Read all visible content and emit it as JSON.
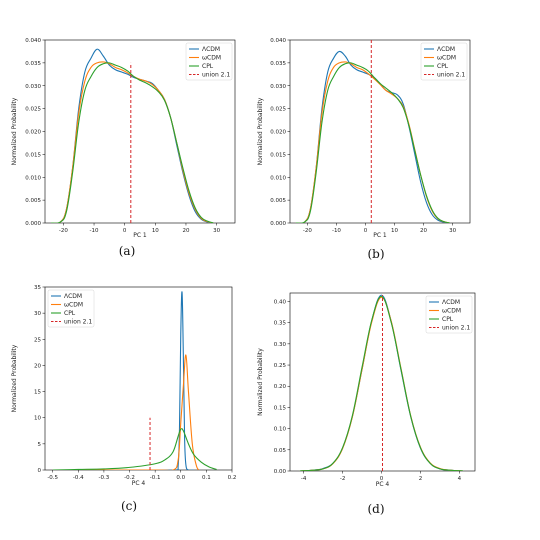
{
  "colors": {
    "lcdm": "#1f77b4",
    "wcdm": "#ff7f0e",
    "cpl": "#2ca02c",
    "union": "#d62728"
  },
  "chart_data": [
    {
      "type": "line",
      "panel": "(a)",
      "xlabel": "PC 1",
      "ylabel": "Normalized Probability",
      "xlim": [
        -26,
        36
      ],
      "ylim": [
        0,
        0.04
      ],
      "xticks": [
        "-20",
        "-10",
        "0",
        "10",
        "20",
        "30"
      ],
      "yticks": [
        "0.000",
        "0.005",
        "0.010",
        "0.015",
        "0.020",
        "0.025",
        "0.030",
        "0.035",
        "0.040"
      ],
      "legend_position": "top-right",
      "vline": {
        "name": "union 2.1",
        "x": 2.0,
        "ymax": 0.035
      },
      "series": [
        {
          "name": "ΛCDM",
          "color_key": "lcdm",
          "x": [
            -24,
            -21,
            -19,
            -17,
            -15,
            -13,
            -11,
            -9,
            -7,
            -5,
            -3,
            -1,
            1,
            3,
            5,
            7,
            9,
            11,
            13,
            15,
            17,
            19,
            21,
            23,
            25,
            27,
            29
          ],
          "y": [
            0.0,
            0.0002,
            0.003,
            0.012,
            0.025,
            0.033,
            0.036,
            0.038,
            0.0365,
            0.0345,
            0.0335,
            0.033,
            0.0325,
            0.0318,
            0.0314,
            0.031,
            0.0305,
            0.029,
            0.027,
            0.023,
            0.017,
            0.011,
            0.006,
            0.0025,
            0.0008,
            0.0002,
            0.0
          ]
        },
        {
          "name": "ωCDM",
          "color_key": "wcdm",
          "x": [
            -24,
            -21,
            -19,
            -17,
            -15,
            -13,
            -11,
            -9,
            -7,
            -5,
            -3,
            -1,
            1,
            3,
            5,
            7,
            9,
            11,
            13,
            15,
            17,
            19,
            21,
            23,
            25,
            27,
            29
          ],
          "y": [
            0.0,
            0.0002,
            0.003,
            0.012,
            0.024,
            0.031,
            0.034,
            0.035,
            0.0352,
            0.0348,
            0.034,
            0.0335,
            0.0328,
            0.032,
            0.0314,
            0.031,
            0.0303,
            0.029,
            0.027,
            0.023,
            0.0175,
            0.0115,
            0.0065,
            0.003,
            0.001,
            0.0003,
            0.0
          ]
        },
        {
          "name": "CPL",
          "color_key": "cpl",
          "x": [
            -24,
            -21,
            -19,
            -17,
            -15,
            -13,
            -11,
            -9,
            -7,
            -5,
            -3,
            -1,
            1,
            3,
            5,
            7,
            9,
            11,
            13,
            15,
            17,
            19,
            21,
            23,
            25,
            27,
            29
          ],
          "y": [
            0.0,
            0.0002,
            0.0025,
            0.011,
            0.022,
            0.029,
            0.032,
            0.034,
            0.0348,
            0.035,
            0.0345,
            0.034,
            0.0332,
            0.032,
            0.0312,
            0.0306,
            0.0298,
            0.0287,
            0.0268,
            0.023,
            0.0175,
            0.012,
            0.007,
            0.0033,
            0.0012,
            0.0004,
            0.0
          ]
        }
      ]
    },
    {
      "type": "line",
      "panel": "(b)",
      "xlabel": "PC 1",
      "ylabel": "Normalized Probability",
      "xlim": [
        -26,
        36
      ],
      "ylim": [
        0,
        0.04
      ],
      "xticks": [
        "-20",
        "-10",
        "0",
        "10",
        "20",
        "30"
      ],
      "yticks": [
        "0.000",
        "0.005",
        "0.010",
        "0.015",
        "0.020",
        "0.025",
        "0.030",
        "0.035",
        "0.040"
      ],
      "legend_position": "top-right",
      "vline": {
        "name": "union 2.1",
        "x": 2.0,
        "ymax": 0.04
      },
      "series": [
        {
          "name": "ΛCDM",
          "color_key": "lcdm",
          "x": [
            -24,
            -21,
            -19,
            -17,
            -15,
            -13,
            -11,
            -9,
            -7,
            -5,
            -3,
            -1,
            1,
            3,
            5,
            7,
            9,
            11,
            13,
            15,
            17,
            19,
            21,
            23,
            25,
            27,
            29
          ],
          "y": [
            0.0,
            0.0002,
            0.003,
            0.012,
            0.025,
            0.033,
            0.036,
            0.0375,
            0.0365,
            0.0345,
            0.0335,
            0.033,
            0.0325,
            0.0318,
            0.0305,
            0.029,
            0.0285,
            0.028,
            0.026,
            0.021,
            0.015,
            0.009,
            0.0045,
            0.0018,
            0.0006,
            0.0002,
            0.0
          ]
        },
        {
          "name": "ωCDM",
          "color_key": "wcdm",
          "x": [
            -24,
            -21,
            -19,
            -17,
            -15,
            -13,
            -11,
            -9,
            -7,
            -5,
            -3,
            -1,
            1,
            3,
            5,
            7,
            9,
            11,
            13,
            15,
            17,
            19,
            21,
            23,
            25,
            27,
            29
          ],
          "y": [
            0.0,
            0.0002,
            0.003,
            0.012,
            0.024,
            0.031,
            0.034,
            0.035,
            0.0352,
            0.0348,
            0.034,
            0.0335,
            0.0326,
            0.0315,
            0.0303,
            0.029,
            0.0282,
            0.0272,
            0.0255,
            0.0215,
            0.016,
            0.0105,
            0.0058,
            0.0026,
            0.0009,
            0.0003,
            0.0
          ]
        },
        {
          "name": "CPL",
          "color_key": "cpl",
          "x": [
            -24,
            -21,
            -19,
            -17,
            -15,
            -13,
            -11,
            -9,
            -7,
            -5,
            -3,
            -1,
            1,
            3,
            5,
            7,
            9,
            11,
            13,
            15,
            17,
            19,
            21,
            23,
            25,
            27,
            29
          ],
          "y": [
            0.0,
            0.0002,
            0.0025,
            0.011,
            0.022,
            0.029,
            0.032,
            0.034,
            0.0348,
            0.035,
            0.0345,
            0.034,
            0.0332,
            0.0318,
            0.0305,
            0.0295,
            0.0285,
            0.0272,
            0.0252,
            0.0212,
            0.0158,
            0.0105,
            0.006,
            0.0028,
            0.001,
            0.0003,
            0.0
          ]
        }
      ]
    },
    {
      "type": "line",
      "panel": "(c)",
      "xlabel": "PC 4",
      "ylabel": "Normalized Probability",
      "xlim": [
        -0.53,
        0.2
      ],
      "ylim": [
        0,
        35
      ],
      "xticks": [
        "-0.5",
        "-0.4",
        "-0.3",
        "-0.2",
        "-0.1",
        "0.0",
        "0.1",
        "0.2"
      ],
      "yticks": [
        "0",
        "5",
        "10",
        "15",
        "20",
        "25",
        "30",
        "35"
      ],
      "legend_position": "top-left",
      "vline": {
        "name": "union 2.1",
        "x": -0.12,
        "ymax": 10
      },
      "series": [
        {
          "name": "ΛCDM",
          "color_key": "lcdm",
          "x": [
            -0.5,
            -0.1,
            -0.02,
            -0.01,
            -0.005,
            0.0,
            0.005,
            0.01,
            0.015,
            0.02,
            0.03,
            0.05
          ],
          "y": [
            0.0,
            0.0,
            0.0,
            1.0,
            8.0,
            26.0,
            34.0,
            22.0,
            6.0,
            1.0,
            0.0,
            0.0
          ]
        },
        {
          "name": "ωCDM",
          "color_key": "wcdm",
          "x": [
            -0.5,
            -0.1,
            -0.03,
            -0.01,
            0.0,
            0.01,
            0.02,
            0.03,
            0.045,
            0.06,
            0.07
          ],
          "y": [
            0.0,
            0.0,
            0.0,
            2.0,
            9.0,
            16.0,
            22.0,
            15.0,
            5.0,
            1.0,
            0.0
          ]
        },
        {
          "name": "CPL",
          "color_key": "cpl",
          "x": [
            -0.5,
            -0.4,
            -0.3,
            -0.2,
            -0.1,
            -0.06,
            -0.03,
            -0.01,
            0.0,
            0.01,
            0.03,
            0.05,
            0.08,
            0.11,
            0.14
          ],
          "y": [
            0.0,
            0.1,
            0.2,
            0.5,
            1.2,
            2.0,
            3.5,
            6.5,
            7.8,
            7.5,
            5.0,
            3.0,
            1.5,
            0.6,
            0.1
          ]
        }
      ]
    },
    {
      "type": "line",
      "panel": "(d)",
      "xlabel": "PC 4",
      "ylabel": "Normalized Probability",
      "xlim": [
        -4.7,
        4.8
      ],
      "ylim": [
        0,
        0.42
      ],
      "xticks": [
        "-4",
        "-2",
        "0",
        "2",
        "4"
      ],
      "yticks": [
        "0.00",
        "0.05",
        "0.10",
        "0.15",
        "0.20",
        "0.25",
        "0.30",
        "0.35",
        "0.40"
      ],
      "legend_position": "top-right",
      "vline": {
        "name": "union 2.1",
        "x": 0.05,
        "ymax": 0.415
      },
      "series": [
        {
          "name": "ΛCDM",
          "color_key": "lcdm",
          "x": [
            -4.2,
            -3.5,
            -3,
            -2.5,
            -2,
            -1.5,
            -1,
            -0.5,
            0,
            0.5,
            1,
            1.5,
            2,
            2.5,
            3,
            3.5,
            4.2
          ],
          "y": [
            0.0,
            0.002,
            0.006,
            0.018,
            0.054,
            0.128,
            0.24,
            0.355,
            0.415,
            0.352,
            0.238,
            0.128,
            0.054,
            0.018,
            0.005,
            0.002,
            0.0
          ]
        },
        {
          "name": "ωCDM",
          "color_key": "wcdm",
          "x": [
            -4.2,
            -3.5,
            -3,
            -2.5,
            -2,
            -1.5,
            -1,
            -0.5,
            0,
            0.5,
            1,
            1.5,
            2,
            2.5,
            3,
            3.5,
            4.2
          ],
          "y": [
            0.0,
            0.002,
            0.005,
            0.017,
            0.053,
            0.127,
            0.24,
            0.352,
            0.41,
            0.353,
            0.242,
            0.13,
            0.056,
            0.019,
            0.006,
            0.002,
            0.0
          ]
        },
        {
          "name": "CPL",
          "color_key": "cpl",
          "x": [
            -4.2,
            -3.5,
            -3,
            -2.5,
            -2,
            -1.5,
            -1,
            -0.5,
            0,
            0.5,
            1,
            1.5,
            2,
            2.5,
            3,
            3.5,
            4.2
          ],
          "y": [
            0.0,
            0.002,
            0.005,
            0.018,
            0.055,
            0.13,
            0.245,
            0.356,
            0.412,
            0.35,
            0.24,
            0.129,
            0.055,
            0.018,
            0.005,
            0.002,
            0.0
          ]
        }
      ]
    }
  ]
}
